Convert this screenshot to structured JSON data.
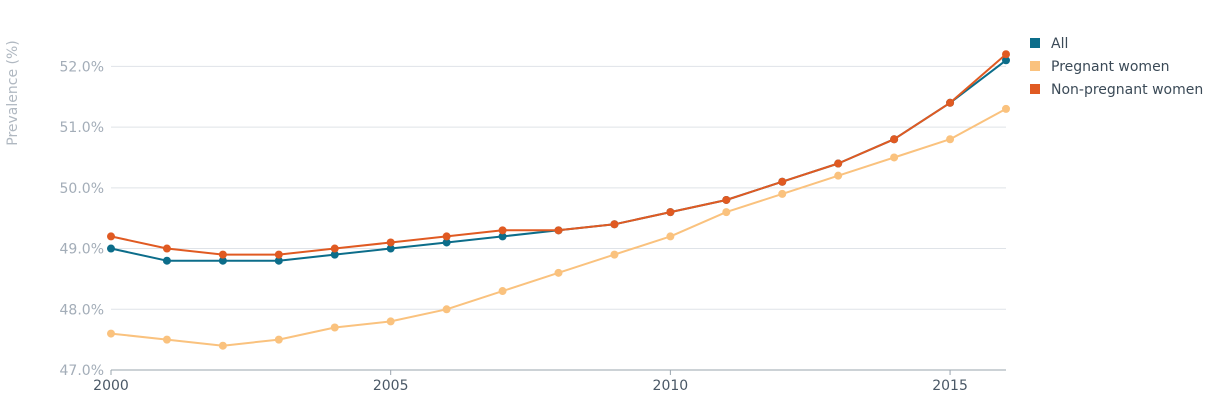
{
  "chart_data": {
    "type": "line",
    "title": "",
    "xlabel": "",
    "ylabel": "Prevalence (%)",
    "xlim": [
      2000,
      2016
    ],
    "ylim": [
      47.0,
      52.5
    ],
    "x_ticks": [
      2000,
      2005,
      2010,
      2015
    ],
    "x_tick_labels": [
      "2000",
      "2005",
      "2010",
      "2015"
    ],
    "y_ticks": [
      47.0,
      48.0,
      49.0,
      50.0,
      51.0,
      52.0
    ],
    "y_tick_labels": [
      "47.0%",
      "48.0%",
      "49.0%",
      "50.0%",
      "51.0%",
      "52.0%"
    ],
    "grid": true,
    "legend_position": "top-right",
    "x": [
      2000,
      2001,
      2002,
      2003,
      2004,
      2005,
      2006,
      2007,
      2008,
      2009,
      2010,
      2011,
      2012,
      2013,
      2014,
      2015,
      2016
    ],
    "series": [
      {
        "name": "Pregnant women",
        "color": "#fac27e",
        "values": [
          47.6,
          47.5,
          47.4,
          47.5,
          47.7,
          47.8,
          48.0,
          48.3,
          48.6,
          48.9,
          49.2,
          49.6,
          49.9,
          50.2,
          50.5,
          50.8,
          51.3
        ]
      },
      {
        "name": "All",
        "color": "#0c6d8a",
        "values": [
          49.0,
          48.8,
          48.8,
          48.8,
          48.9,
          49.0,
          49.1,
          49.2,
          49.3,
          49.4,
          49.6,
          49.8,
          50.1,
          50.4,
          50.8,
          51.4,
          52.1
        ]
      },
      {
        "name": "Non-pregnant women",
        "color": "#e05a22",
        "values": [
          49.2,
          49.0,
          48.9,
          48.9,
          49.0,
          49.1,
          49.2,
          49.3,
          49.3,
          49.4,
          49.6,
          49.8,
          50.1,
          50.4,
          50.8,
          51.4,
          52.2
        ]
      }
    ],
    "legend_order": [
      "All",
      "Pregnant women",
      "Non-pregnant women"
    ]
  }
}
